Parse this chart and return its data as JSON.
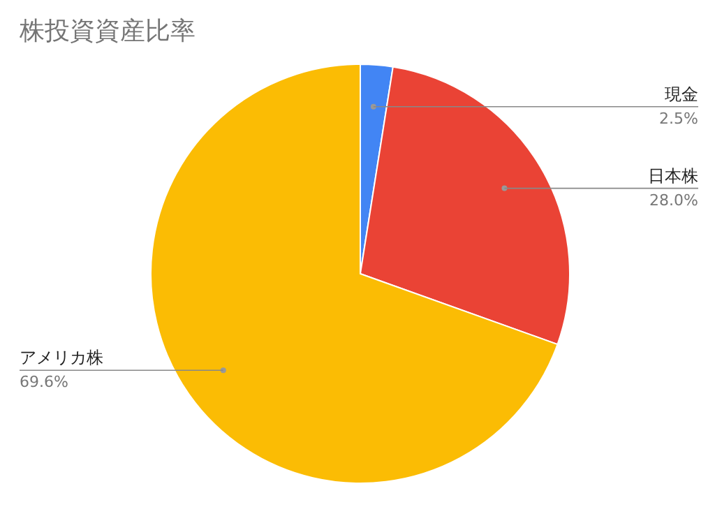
{
  "chart_data": {
    "type": "pie",
    "title": "株投資資産比率",
    "categories": [
      "現金",
      "日本株",
      "アメリカ株"
    ],
    "values": [
      2.5,
      28.0,
      69.6
    ],
    "colors": [
      "#4285f4",
      "#ea4335",
      "#fbbc04"
    ],
    "value_labels": [
      "2.5%",
      "28.0%",
      "69.6%"
    ]
  }
}
